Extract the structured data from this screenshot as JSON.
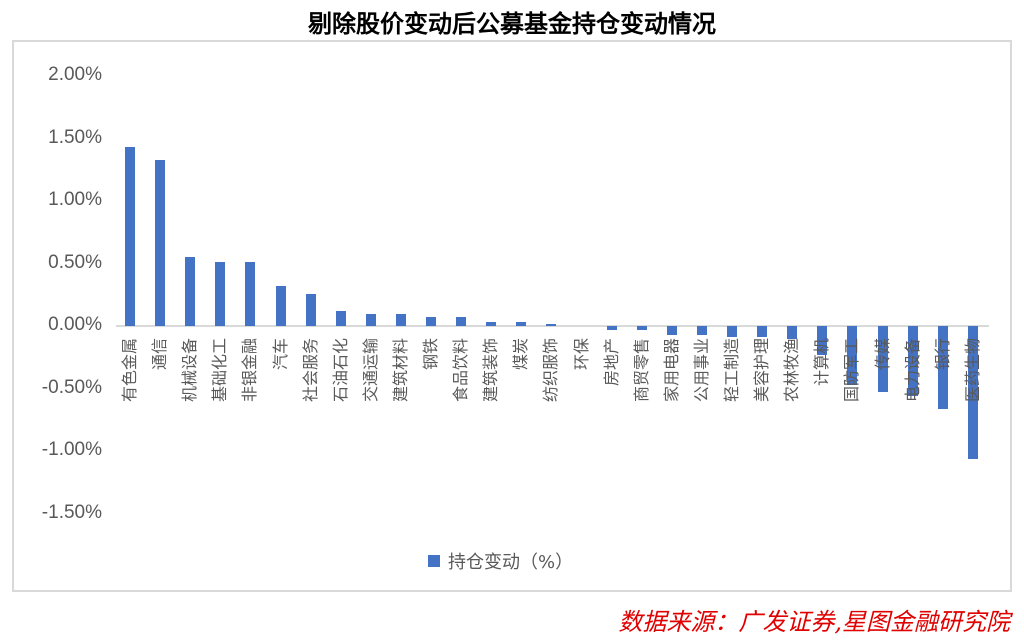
{
  "page": {
    "title": "剔除股价变动后公募基金持仓变动情况",
    "source": "数据来源：广发证券,星图金融研究院"
  },
  "colors": {
    "bar": "#4472c4",
    "axis": "#d9d9d9",
    "tick_text": "#595959",
    "source_text": "#e00000"
  },
  "legend": {
    "label": "持仓变动（%）"
  },
  "chart_data": {
    "type": "bar",
    "title": "剔除股价变动后公募基金持仓变动情况",
    "xlabel": "",
    "ylabel": "",
    "ylim": [
      -1.5,
      2.0
    ],
    "yticks": [
      "2.00%",
      "1.50%",
      "1.00%",
      "0.50%",
      "0.00%",
      "-0.50%",
      "-1.00%",
      "-1.50%"
    ],
    "grid": false,
    "legend_position": "bottom",
    "categories": [
      "有色金属",
      "通信",
      "机械设备",
      "基础化工",
      "非银金融",
      "汽车",
      "社会服务",
      "石油石化",
      "交通运输",
      "建筑材料",
      "钢铁",
      "食品饮料",
      "建筑装饰",
      "煤炭",
      "纺织服饰",
      "环保",
      "房地产",
      "商贸零售",
      "家用电器",
      "公用事业",
      "轻工制造",
      "美容护理",
      "农林牧渔",
      "计算机",
      "国防军工",
      "传媒",
      "电力设备",
      "银行",
      "医药生物"
    ],
    "series": [
      {
        "name": "持仓变动（%）",
        "values": [
          1.43,
          1.33,
          0.55,
          0.51,
          0.51,
          0.32,
          0.26,
          0.12,
          0.1,
          0.1,
          0.07,
          0.07,
          0.03,
          0.03,
          0.02,
          0.0,
          -0.03,
          -0.03,
          -0.07,
          -0.07,
          -0.09,
          -0.09,
          -0.1,
          -0.23,
          -0.47,
          -0.53,
          -0.56,
          -0.66,
          -1.06
        ]
      }
    ]
  }
}
